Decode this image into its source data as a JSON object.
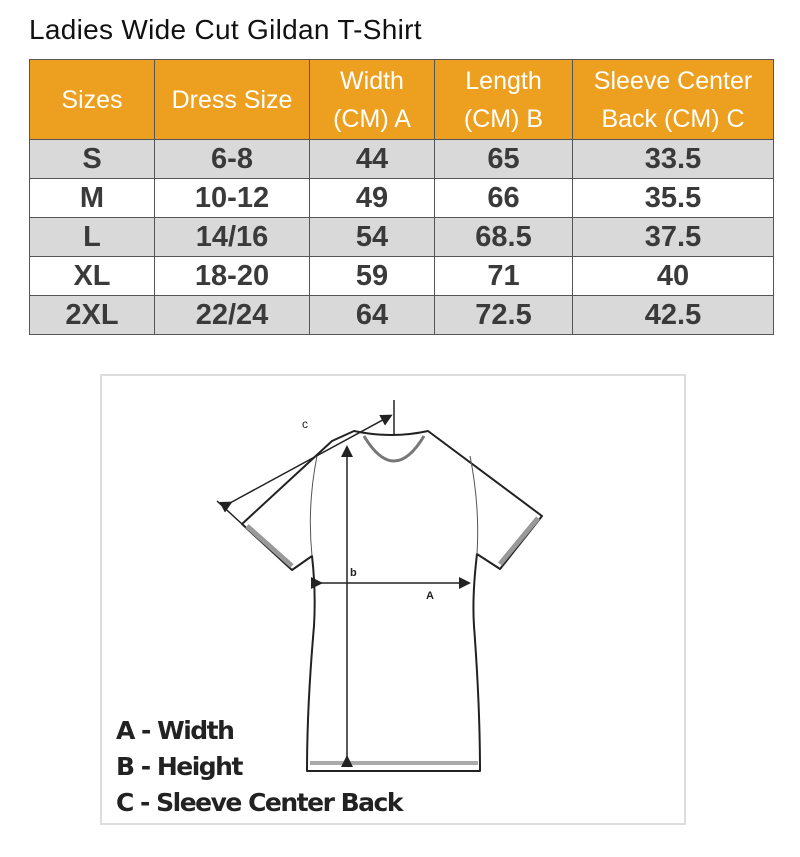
{
  "title": "Ladies Wide Cut Gildan T-Shirt",
  "colors": {
    "header_bg": "#eda020",
    "row_alt_bg": "#d9d9d9"
  },
  "table": {
    "headers": [
      "Sizes",
      "Dress Size",
      "Width (CM) A",
      "Length (CM) B",
      "Sleeve Center Back (CM) C"
    ],
    "header_lines": [
      [
        "Sizes"
      ],
      [
        "Dress Size"
      ],
      [
        "Width",
        "(CM) A"
      ],
      [
        "Length",
        "(CM) B"
      ],
      [
        "Sleeve Center",
        "Back (CM) C"
      ]
    ],
    "rows": [
      [
        "S",
        "6-8",
        "44",
        "65",
        "33.5"
      ],
      [
        "M",
        "10-12",
        "49",
        "66",
        "35.5"
      ],
      [
        "L",
        "14/16",
        "54",
        "68.5",
        "37.5"
      ],
      [
        "XL",
        "18-20",
        "59",
        "71",
        "40"
      ],
      [
        "2XL",
        "22/24",
        "64",
        "72.5",
        "42.5"
      ]
    ]
  },
  "diagram": {
    "labels": {
      "a": "A",
      "b": "b",
      "c": "c"
    },
    "legend": [
      "A - Width",
      "B - Height",
      "C - Sleeve Center Back"
    ]
  }
}
